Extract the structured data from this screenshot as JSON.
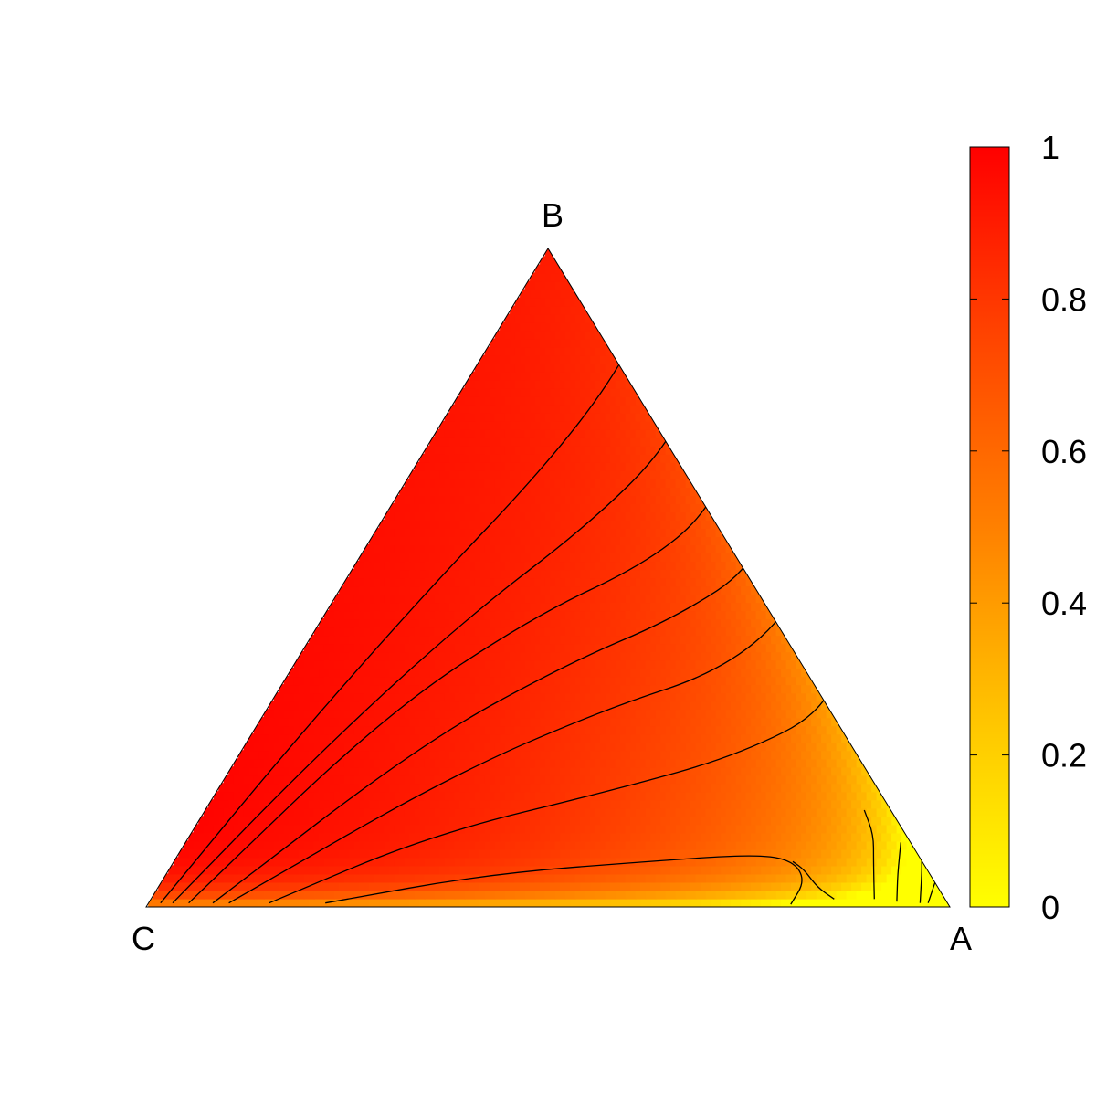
{
  "chart_data": {
    "type": "heatmap",
    "title": "",
    "xlabel": "",
    "ylabel": "",
    "ternary": true,
    "vertices": {
      "top": "B",
      "left": "C",
      "right": "A"
    },
    "colorbar": {
      "ticks": [
        "0",
        "0.2",
        "0.4",
        "0.6",
        "0.8",
        "1"
      ],
      "range": [
        0,
        1
      ],
      "colors": {
        "low": "#ffff00",
        "mid": "#ff8000",
        "high": "#ff0000"
      }
    },
    "grid": false,
    "legend": "none",
    "contours": [
      {
        "level": 0.05,
        "path": [
          [
            0.85,
            0.012
          ],
          [
            0.82,
            0.03
          ],
          [
            0.79,
            0.057
          ],
          [
            0.77,
            0.069
          ]
        ]
      },
      {
        "level": 0.1,
        "path": [
          [
            0.9,
            0.012
          ],
          [
            0.87,
            0.07
          ],
          [
            0.85,
            0.11
          ],
          [
            0.82,
            0.147
          ]
        ]
      },
      {
        "level": 0.15,
        "path": [
          [
            0.93,
            0.008
          ],
          [
            0.91,
            0.05
          ],
          [
            0.89,
            0.098
          ]
        ]
      },
      {
        "level": 0.2,
        "path": [
          [
            0.96,
            0.006
          ],
          [
            0.94,
            0.05
          ],
          [
            0.93,
            0.07
          ]
        ]
      },
      {
        "level": 0.25,
        "path": [
          [
            0.97,
            0.006
          ],
          [
            0.96,
            0.05
          ]
        ]
      },
      {
        "level": 0.5,
        "path": [
          [
            0.22,
            0.006
          ],
          [
            0.4,
            0.05
          ],
          [
            0.6,
            0.07
          ],
          [
            0.72,
            0.08
          ],
          [
            0.77,
            0.07
          ],
          [
            0.8,
            0.04
          ],
          [
            0.8,
            0.004
          ]
        ]
      },
      {
        "level": 0.7,
        "path": [
          [
            0.15,
            0.006
          ],
          [
            0.3,
            0.11
          ],
          [
            0.5,
            0.18
          ],
          [
            0.62,
            0.23
          ],
          [
            0.7,
            0.3
          ],
          [
            0.66,
            0.42
          ],
          [
            0.54,
            0.58
          ],
          [
            0.48,
            0.66
          ],
          [
            0.42,
            0.75
          ]
        ]
      },
      {
        "level": 0.75,
        "path": [
          [
            0.1,
            0.006
          ],
          [
            0.28,
            0.2
          ],
          [
            0.42,
            0.3
          ],
          [
            0.54,
            0.36
          ],
          [
            0.58,
            0.46
          ],
          [
            0.54,
            0.6
          ],
          [
            0.46,
            0.72
          ],
          [
            0.4,
            0.79
          ],
          [
            0.36,
            0.85
          ]
        ]
      },
      {
        "level": 0.8,
        "path": [
          [
            0.08,
            0.006
          ],
          [
            0.22,
            0.25
          ],
          [
            0.34,
            0.37
          ],
          [
            0.44,
            0.44
          ],
          [
            0.5,
            0.52
          ],
          [
            0.46,
            0.66
          ],
          [
            0.4,
            0.78
          ],
          [
            0.35,
            0.85
          ],
          [
            0.31,
            0.88
          ]
        ]
      },
      {
        "level": 0.85,
        "path": [
          [
            0.05,
            0.006
          ],
          [
            0.15,
            0.29
          ],
          [
            0.26,
            0.44
          ],
          [
            0.36,
            0.52
          ],
          [
            0.4,
            0.6
          ],
          [
            0.38,
            0.72
          ],
          [
            0.34,
            0.83
          ],
          [
            0.3,
            0.89
          ],
          [
            0.27,
            0.91
          ]
        ]
      },
      {
        "level": 0.9,
        "path": [
          [
            0.03,
            0.006
          ],
          [
            0.1,
            0.24
          ],
          [
            0.18,
            0.44
          ],
          [
            0.26,
            0.58
          ],
          [
            0.3,
            0.7
          ],
          [
            0.28,
            0.82
          ],
          [
            0.25,
            0.9
          ],
          [
            0.23,
            0.95
          ]
        ]
      },
      {
        "level": 0.95,
        "path": [
          [
            0.015,
            0.006
          ],
          [
            0.06,
            0.26
          ],
          [
            0.11,
            0.48
          ],
          [
            0.16,
            0.66
          ],
          [
            0.18,
            0.8
          ],
          [
            0.17,
            0.92
          ],
          [
            0.16,
            0.97
          ]
        ]
      }
    ]
  }
}
